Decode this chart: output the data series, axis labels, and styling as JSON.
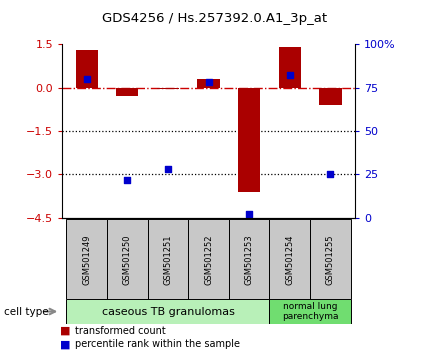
{
  "title": "GDS4256 / Hs.257392.0.A1_3p_at",
  "samples": [
    "GSM501249",
    "GSM501250",
    "GSM501251",
    "GSM501252",
    "GSM501253",
    "GSM501254",
    "GSM501255"
  ],
  "transformed_count": [
    1.3,
    -0.3,
    -0.05,
    0.3,
    -3.6,
    1.4,
    -0.6
  ],
  "percentile_rank": [
    80,
    22,
    28,
    78,
    2,
    82,
    25
  ],
  "ylim_left": [
    -4.5,
    1.5
  ],
  "ylim_right": [
    0,
    100
  ],
  "yticks_left": [
    1.5,
    0,
    -1.5,
    -3,
    -4.5
  ],
  "yticks_right": [
    100,
    75,
    50,
    25,
    0
  ],
  "dotted_lines": [
    -1.5,
    -3
  ],
  "bar_color": "#aa0000",
  "marker_color": "#0000cc",
  "bar_width": 0.55,
  "cell_groups": [
    {
      "label": "caseous TB granulomas",
      "indices": [
        0,
        1,
        2,
        3,
        4
      ],
      "color": "#b8f0b8"
    },
    {
      "label": "normal lung\nparenchyma",
      "indices": [
        5,
        6
      ],
      "color": "#70dd70"
    }
  ],
  "legend_bar_label": "transformed count",
  "legend_marker_label": "percentile rank within the sample",
  "cell_type_label": "cell type",
  "bg_color": "#ffffff",
  "tick_label_color_left": "#cc0000",
  "tick_label_color_right": "#0000cc",
  "zero_line_color": "#cc0000",
  "dotted_line_color": "#000000",
  "sample_bg_color": "#c8c8c8"
}
